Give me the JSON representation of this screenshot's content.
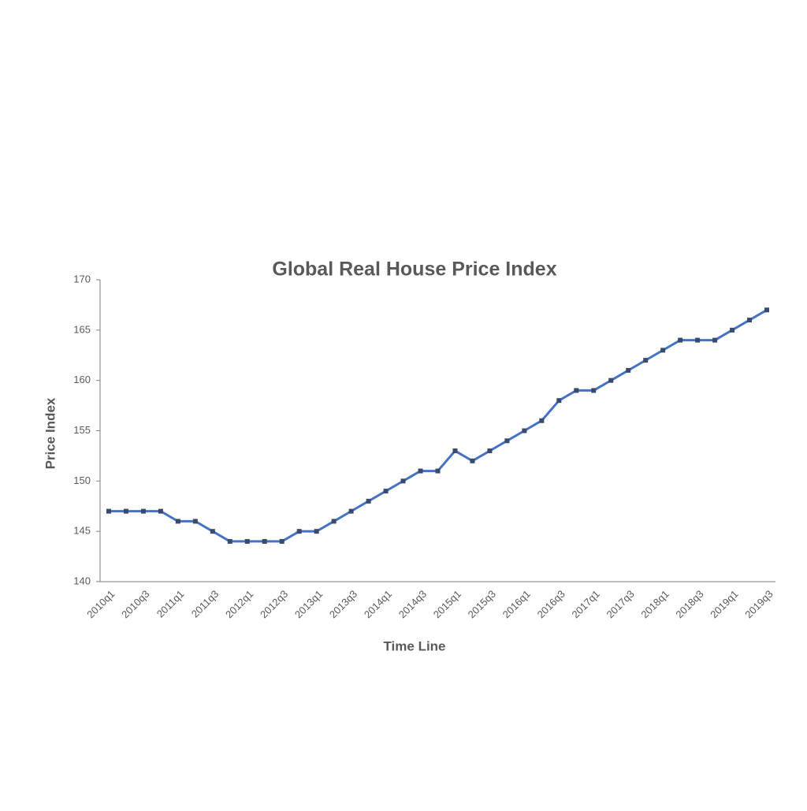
{
  "chart_data": {
    "type": "line",
    "title": "Global Real House Price Index",
    "x_label": "Time Line",
    "y_label": "Price Index",
    "categories": [
      "2010q1",
      null,
      "2010q3",
      null,
      "2011q1",
      null,
      "2011q3",
      null,
      "2012q1",
      null,
      "2012q3",
      null,
      "2013q1",
      null,
      "2013q3",
      null,
      "2014q1",
      null,
      "2014q3",
      null,
      "2015q1",
      null,
      "2015q3",
      null,
      "2016q1",
      null,
      "2016q3",
      null,
      "2017q1",
      null,
      "2017q3",
      null,
      "2018q1",
      null,
      "2018q3",
      null,
      "2019q1",
      null,
      "2019q3"
    ],
    "values": [
      147,
      147,
      147,
      147,
      146,
      146,
      145,
      144,
      144,
      144,
      144,
      145,
      145,
      146,
      147,
      148,
      149,
      150,
      151,
      151,
      153,
      152,
      153,
      154,
      155,
      156,
      158,
      159,
      159,
      160,
      161,
      162,
      163,
      164,
      164,
      164,
      165,
      166,
      167
    ],
    "color": "#4472c4",
    "marker_color": "#3a4a6b",
    "ylim": [
      140,
      170
    ],
    "yticks": [
      140,
      145,
      150,
      155,
      160,
      165,
      170
    ]
  }
}
